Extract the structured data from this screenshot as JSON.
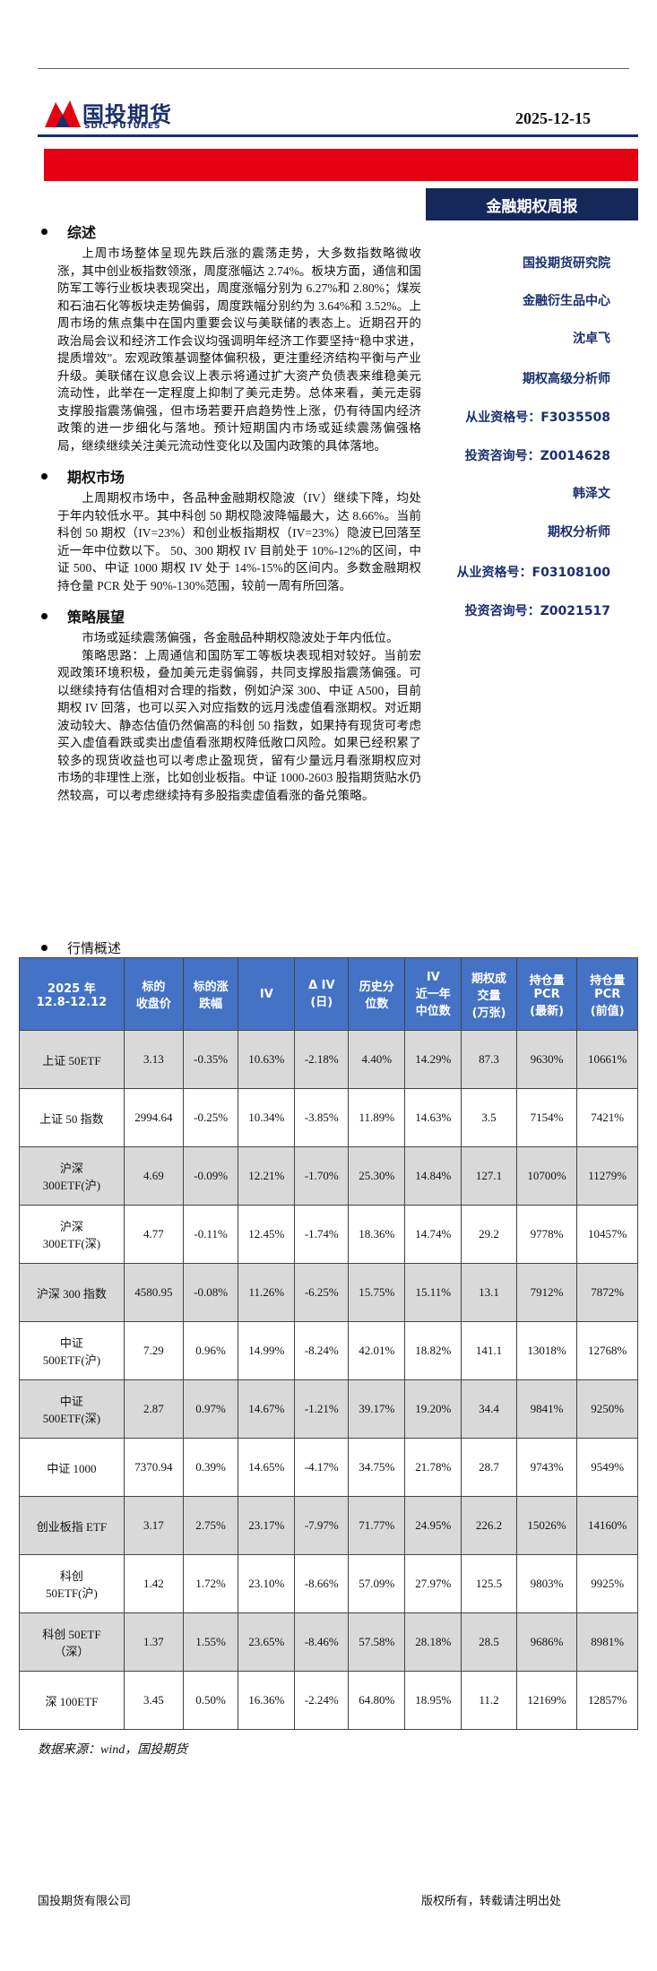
{
  "header": {
    "logo_cn": "国投期货",
    "logo_en": "SDIC FUTURES",
    "date": "2025-12-15",
    "report_title": "金融期权周报"
  },
  "sidebar": [
    "国投期货研究院",
    "金融衍生品中心",
    "沈卓飞",
    "期权高级分析师",
    "从业资格号：F3035508",
    "投资咨询号：Z0014628",
    "韩泽文",
    "期权分析师",
    "从业资格号：F03108100",
    "投资咨询号：Z0021517"
  ],
  "sections": [
    {
      "heading": "综述",
      "paragraphs": [
        "上周市场整体呈现先跌后涨的震荡走势，大多数指数略微收涨，其中创业板指数领涨，周度涨幅达 2.74%。板块方面，通信和国防军工等行业板块表现突出，周度涨幅分别为 6.27%和 2.80%；煤炭和石油石化等板块走势偏弱，周度跌幅分别约为 3.64%和 3.52%。上周市场的焦点集中在国内重要会议与美联储的表态上。近期召开的政治局会议和经济工作会议均强调明年经济工作要坚持“稳中求进，提质增效”。宏观政策基调整体偏积极，更注重经济结构平衡与产业升级。美联储在议息会议上表示将通过扩大资产负债表来维稳美元流动性，此举在一定程度上抑制了美元走势。总体来看，美元走弱支撑股指震荡偏强，但市场若要开启趋势性上涨，仍有待国内经济政策的进一步细化与落地。预计短期国内市场或延续震荡偏强格局，继续继续关注美元流动性变化以及国内政策的具体落地。"
      ]
    },
    {
      "heading": "期权市场",
      "paragraphs": [
        "上周期权市场中，各品种金融期权隐波（IV）继续下降，均处于年内较低水平。其中科创 50 期权隐波降幅最大，达 8.66%。当前科创 50 期权（IV=23%）和创业板指期权（IV=23%）隐波已回落至近一年中位数以下。  50、300 期权 IV 目前处于 10%-12%的区间，中证 500、中证 1000 期权 IV 处于 14%-15%的区间内。多数金融期权持仓量 PCR 处于 90%-130%范围，较前一周有所回落。"
      ]
    },
    {
      "heading": "策略展望",
      "paragraphs": [
        "市场或延续震荡偏强，各金融品种期权隐波处于年内低位。",
        "策略思路：上周通信和国防军工等板块表现相对较好。当前宏观政策环境积极，叠加美元走弱偏弱，共同支撑股指震荡偏强。可以继续持有估值相对合理的指数，例如沪深 300、中证 A500，目前期权 IV 回落，也可以买入对应指数的远月浅虚值看涨期权。对近期波动较大、静态估值仍然偏高的科创 50 指数，如果持有现货可考虑买入虚值看跌或卖出虚值看涨期权降低敞口风险。如果已经积累了较多的现货收益也可以考虑止盈现货，留有少量远月看涨期权应对市场的非理性上涨，比如创业板指。中证 1000-2603 股指期货贴水仍然较高，可以考虑继续持有多股指卖虚值看涨的备兑策略。"
      ]
    }
  ],
  "table": {
    "heading": "行情概述",
    "columns": [
      "2025 年\n12.8-12.12",
      "标的\n收盘价",
      "标的涨\n跌幅",
      "IV",
      "Δ IV\n(日)",
      "历史分\n位数",
      "IV\n近一年\n中位数",
      "期权成\n交量\n(万张)",
      "持仓量\nPCR\n(最新)",
      "持仓量\nPCR\n(前值)"
    ],
    "rows": [
      [
        "上证 50ETF",
        "3.13",
        "-0.35%",
        "10.63%",
        "-2.18%",
        "4.40%",
        "14.29%",
        "87.3",
        "9630%",
        "10661%"
      ],
      [
        "上证 50 指数",
        "2994.64",
        "-0.25%",
        "10.34%",
        "-3.85%",
        "11.89%",
        "14.63%",
        "3.5",
        "7154%",
        "7421%"
      ],
      [
        "沪深\n300ETF(沪)",
        "4.69",
        "-0.09%",
        "12.21%",
        "-1.70%",
        "25.30%",
        "14.84%",
        "127.1",
        "10700%",
        "11279%"
      ],
      [
        "沪深\n300ETF(深)",
        "4.77",
        "-0.11%",
        "12.45%",
        "-1.74%",
        "18.36%",
        "14.74%",
        "29.2",
        "9778%",
        "10457%"
      ],
      [
        "沪深 300 指数",
        "4580.95",
        "-0.08%",
        "11.26%",
        "-6.25%",
        "15.75%",
        "15.11%",
        "13.1",
        "7912%",
        "7872%"
      ],
      [
        "中证\n500ETF(沪)",
        "7.29",
        "0.96%",
        "14.99%",
        "-8.24%",
        "42.01%",
        "18.82%",
        "141.1",
        "13018%",
        "12768%"
      ],
      [
        "中证\n500ETF(深)",
        "2.87",
        "0.97%",
        "14.67%",
        "-1.21%",
        "39.17%",
        "19.20%",
        "34.4",
        "9841%",
        "9250%"
      ],
      [
        "中证 1000",
        "7370.94",
        "0.39%",
        "14.65%",
        "-4.17%",
        "34.75%",
        "21.78%",
        "28.7",
        "9743%",
        "9549%"
      ],
      [
        "创业板指 ETF",
        "3.17",
        "2.75%",
        "23.17%",
        "-7.97%",
        "71.77%",
        "24.95%",
        "226.2",
        "15026%",
        "14160%"
      ],
      [
        "科创\n50ETF(沪)",
        "1.42",
        "1.72%",
        "23.10%",
        "-8.66%",
        "57.09%",
        "27.97%",
        "125.5",
        "9803%",
        "9925%"
      ],
      [
        "科创 50ETF\n（深）",
        "1.37",
        "1.55%",
        "23.65%",
        "-8.46%",
        "57.58%",
        "28.18%",
        "28.5",
        "9686%",
        "8981%"
      ],
      [
        "深 100ETF",
        "3.45",
        "0.50%",
        "16.36%",
        "-2.24%",
        "64.80%",
        "18.95%",
        "11.2",
        "12169%",
        "12857%"
      ]
    ],
    "source": "数据来源：wind，国投期货"
  },
  "footer": {
    "left": "国投期货有限公司",
    "right": "版权所有，转载请注明出处"
  }
}
